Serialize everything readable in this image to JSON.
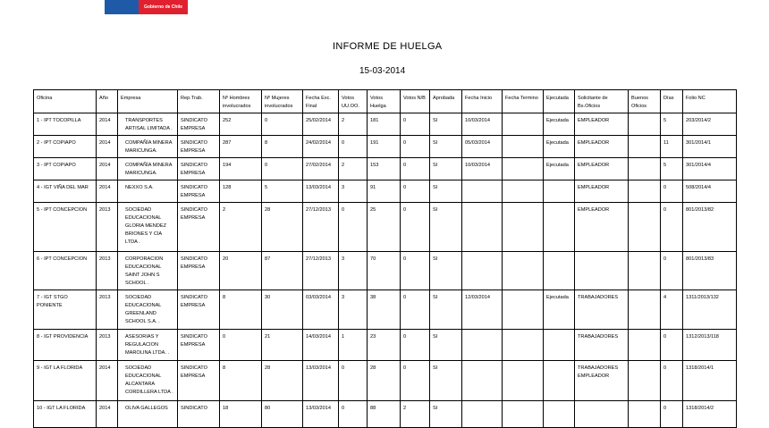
{
  "logo": {
    "text": "Gobierno de Chile",
    "colors": {
      "blue": "#1f5aa8",
      "red": "#e0202e"
    }
  },
  "report": {
    "title": "INFORME DE HUELGA",
    "date": "15-03-2014"
  },
  "table": {
    "headers": [
      "Oficina",
      "Año",
      "Empresa",
      "Rep.Trab.",
      "Nº Hombres involucrados",
      "Nº Mujeres involucrados",
      "Fecha Exc. Final",
      "Votos UU.OO.",
      "Votos Huelga",
      "Votos N/B",
      "Aprobada",
      "Fecha Inicio",
      "Fecha Termino",
      "Ejecutada",
      "Solicitante de Bs.Oficios",
      "Buenos Oficios",
      "Días",
      "Folio NC"
    ],
    "rows": [
      [
        "1 - IPT TOCOPILLA",
        "2014",
        "TRANSPORTES ARTISAL LIMITADA .",
        "SINDICATO EMPRESA",
        "252",
        "0",
        "25/02/2014",
        "2",
        "181",
        "0",
        "SI",
        "10/03/2014",
        "",
        "Ejecutada",
        "EMPLEADOR",
        "",
        "5",
        "203/2014/2"
      ],
      [
        "2 - IPT COPIAPO",
        "2014",
        "COMPAÑÍA MINERA MARICUNGA.",
        "SINDICATO EMPRESA",
        "287",
        "8",
        "24/02/2014",
        "0",
        "191",
        "0",
        "SI",
        "05/03/2014",
        "",
        "Ejecutada",
        "EMPLEADOR",
        "",
        "11",
        "301/2014/1"
      ],
      [
        "3 - IPT COPIAPO",
        "2014",
        "COMPAÑÍA MINERA MARICUNGA.",
        "SINDICATO EMPRESA",
        "194",
        "0",
        "27/02/2014",
        "2",
        "153",
        "0",
        "SI",
        "10/03/2014",
        "",
        "Ejecutada",
        "EMPLEADOR",
        "",
        "5",
        "301/2014/4"
      ],
      [
        "4 - IGT VIÑA DEL MAR",
        "2014",
        "NEXXO S.A.",
        "SINDICATO EMPRESA",
        "128",
        "5",
        "13/03/2014",
        "3",
        "91",
        "0",
        "SI",
        "",
        "",
        "",
        "EMPLEADOR",
        "",
        "0",
        "508/2014/4"
      ],
      [
        "5 - IPT CONCEPCION",
        "2013",
        "SOCIEDAD EDUCACIONAL GLORIA MENDEZ BRIONES Y CIA LTDA .",
        "SINDICATO EMPRESA",
        "2",
        "28",
        "27/12/2013",
        "0",
        "25",
        "0",
        "SI",
        "",
        "",
        "",
        "EMPLEADOR",
        "",
        "0",
        "801/2013/82"
      ],
      [
        "6 - IPT CONCEPCION",
        "2013",
        "CORPORACION EDUCACIONAL SAINT JOHN S SCHOOL .",
        "SINDICATO EMPRESA",
        "20",
        "87",
        "27/12/2013",
        "3",
        "70",
        "0",
        "SI",
        "",
        "",
        "",
        "",
        "",
        "0",
        "801/2013/83"
      ],
      [
        "7 - IGT STGO PONIENTE",
        "2013",
        "SOCIEDAD EDUCACIONAL GREENLAND SCHOOL S.A. .",
        "SINDICATO EMPRESA",
        "8",
        "30",
        "03/03/2014",
        "3",
        "38",
        "0",
        "SI",
        "12/03/2014",
        "",
        "Ejecutada",
        "TRABAJADORES",
        "",
        "4",
        "1311/2013/132"
      ],
      [
        "8 - IGT PROVIDENCIA",
        "2013",
        "ASESORIAS Y REGULACION MAROLINA LTDA. .",
        "SINDICATO EMPRESA",
        "0",
        "21",
        "14/03/2014",
        "1",
        "23",
        "0",
        "SI",
        "",
        "",
        "",
        "TRABAJADORES",
        "",
        "0",
        "1312/2013/118"
      ],
      [
        "9 - IGT LA FLORIDA",
        "2014",
        "SOCIEDAD EDUCACIONAL ALCANTARA CORDILLERA LTDA .",
        "SINDICATO EMPRESA",
        "8",
        "28",
        "13/03/2014",
        "0",
        "28",
        "0",
        "SI",
        "",
        "",
        "",
        "TRABAJADORES EMPLEADOR",
        "",
        "0",
        "1318/2014/1"
      ],
      [
        "10 - IGT LA FLORIDA",
        "2014",
        "OLIVA GALLEGOS",
        "SINDICATO",
        "18",
        "80",
        "13/03/2014",
        "0",
        "88",
        "2",
        "SI",
        "",
        "",
        "",
        "",
        "",
        "0",
        "1318/2014/2"
      ]
    ]
  }
}
